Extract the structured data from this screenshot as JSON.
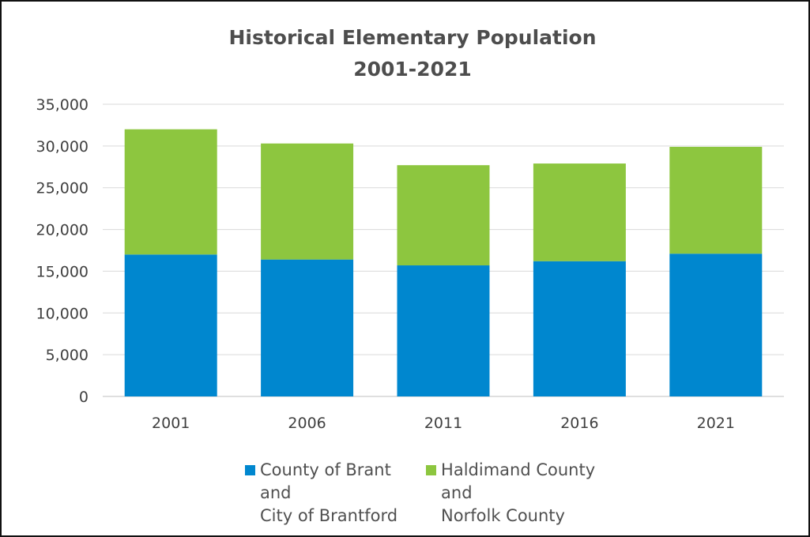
{
  "chart_data": {
    "type": "bar",
    "stacked": true,
    "title": "Historical Elementary Population\n2001-2021",
    "title_lines": [
      "Historical Elementary Population",
      "2001-2021"
    ],
    "categories": [
      "2001",
      "2006",
      "2011",
      "2016",
      "2021"
    ],
    "series": [
      {
        "name": "County of Brant\nand\nCity of Brantford",
        "color": "#0087cf",
        "values": [
          17000,
          16400,
          15700,
          16200,
          17100
        ]
      },
      {
        "name": "Haldimand County\nand\nNorfolk County",
        "color": "#8dc63f",
        "values": [
          15000,
          13900,
          12000,
          11700,
          12800
        ]
      }
    ],
    "ylim": [
      0,
      35000
    ],
    "yticks": [
      0,
      5000,
      10000,
      15000,
      20000,
      25000,
      30000,
      35000
    ],
    "ytick_labels": [
      "0",
      "5,000",
      "10,000",
      "15,000",
      "20,000",
      "25,000",
      "30,000",
      "35,000"
    ],
    "grid": true,
    "legend_position": "bottom",
    "xlabel": "",
    "ylabel": ""
  }
}
